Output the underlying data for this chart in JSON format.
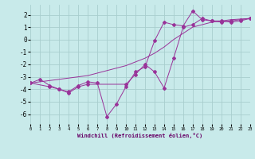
{
  "bg_color": "#c8eaea",
  "grid_color": "#a8cece",
  "line_color": "#993399",
  "xlim": [
    0,
    23
  ],
  "ylim": [
    -6.8,
    2.8
  ],
  "xticks": [
    0,
    1,
    2,
    3,
    4,
    5,
    6,
    7,
    8,
    9,
    10,
    11,
    12,
    13,
    14,
    15,
    16,
    17,
    18,
    19,
    20,
    21,
    22,
    23
  ],
  "yticks": [
    -6,
    -5,
    -4,
    -3,
    -2,
    -1,
    0,
    1,
    2
  ],
  "xlabel": "Windchill (Refroidissement éolien,°C)",
  "line1": {
    "x": [
      0,
      1,
      2,
      3,
      4,
      5,
      6,
      7,
      8,
      9,
      10,
      11,
      12,
      13,
      14,
      15,
      16,
      17,
      18,
      19,
      20,
      21,
      22,
      23
    ],
    "y": [
      -3.5,
      -3.2,
      -3.7,
      -4.0,
      -4.2,
      -3.7,
      -3.4,
      -3.5,
      -6.2,
      -5.2,
      -3.8,
      -2.6,
      -2.2,
      -0.1,
      1.4,
      1.2,
      1.1,
      2.3,
      1.6,
      1.5,
      1.4,
      1.5,
      1.6,
      1.7
    ]
  },
  "line2": {
    "x": [
      0,
      1,
      2,
      3,
      4,
      5,
      6,
      7,
      8,
      9,
      10,
      11,
      12,
      13,
      14,
      15,
      16,
      17,
      18,
      19,
      20,
      21,
      22,
      23
    ],
    "y": [
      -3.5,
      -3.4,
      -3.3,
      -3.2,
      -3.1,
      -3.0,
      -2.9,
      -2.7,
      -2.5,
      -2.3,
      -2.1,
      -1.8,
      -1.5,
      -1.1,
      -0.6,
      0.0,
      0.5,
      1.0,
      1.2,
      1.4,
      1.5,
      1.6,
      1.65,
      1.7
    ]
  },
  "line3": {
    "x": [
      0,
      2,
      3,
      4,
      5,
      6,
      10,
      11,
      12,
      13,
      14,
      15,
      16,
      17,
      18,
      19,
      20,
      21,
      22,
      23
    ],
    "y": [
      -3.5,
      -3.8,
      -4.0,
      -4.3,
      -3.8,
      -3.6,
      -3.6,
      -2.8,
      -2.0,
      -2.6,
      -3.9,
      -1.5,
      1.0,
      1.2,
      1.7,
      1.5,
      1.5,
      1.4,
      1.5,
      1.7
    ]
  }
}
